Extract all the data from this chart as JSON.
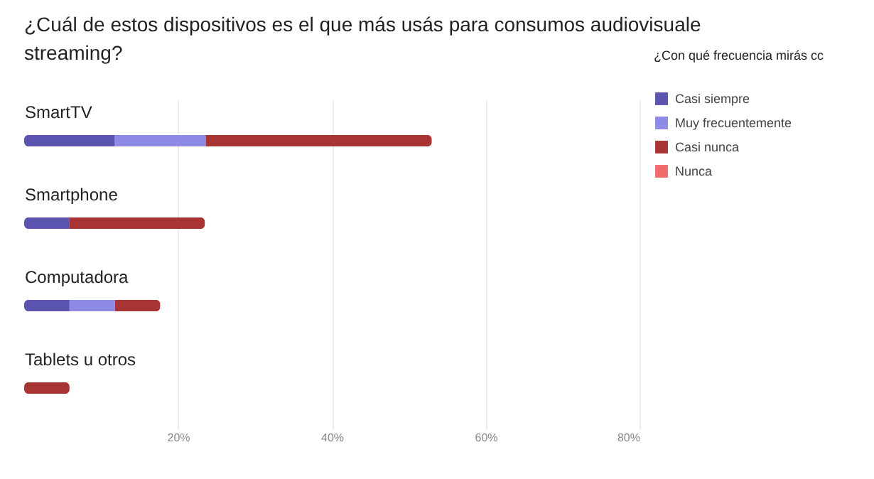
{
  "chart_data": {
    "type": "bar",
    "orientation": "horizontal",
    "stacked": true,
    "title": "¿Cuál de estos dispositivos es el que más usás para consumos audiovisuale streaming?",
    "legend_title": "¿Con qué frecuencia mirás cc",
    "categories": [
      "SmartTV",
      "Smartphone",
      "Computadora",
      "Tablets u otros"
    ],
    "series": [
      {
        "name": "Casi siempre",
        "color": "#5b55b0",
        "values": [
          11.8,
          5.9,
          5.9,
          null
        ]
      },
      {
        "name": "Muy frecuentemente",
        "color": "#8f8ae6",
        "values": [
          11.8,
          null,
          5.9,
          null
        ]
      },
      {
        "name": "Casi nunca",
        "color": "#a83434",
        "values": [
          29.4,
          17.6,
          5.9,
          5.9
        ]
      },
      {
        "name": "Nunca",
        "color": "#f26b6b",
        "values": [
          null,
          null,
          null,
          null
        ]
      }
    ],
    "xlim": [
      0,
      80
    ],
    "xticks": [
      {
        "value": 20,
        "label": "20%"
      },
      {
        "value": 40,
        "label": "40%"
      },
      {
        "value": 60,
        "label": "60%"
      },
      {
        "value": 80,
        "label": "80%"
      }
    ],
    "grid": "x",
    "legend": "right"
  }
}
